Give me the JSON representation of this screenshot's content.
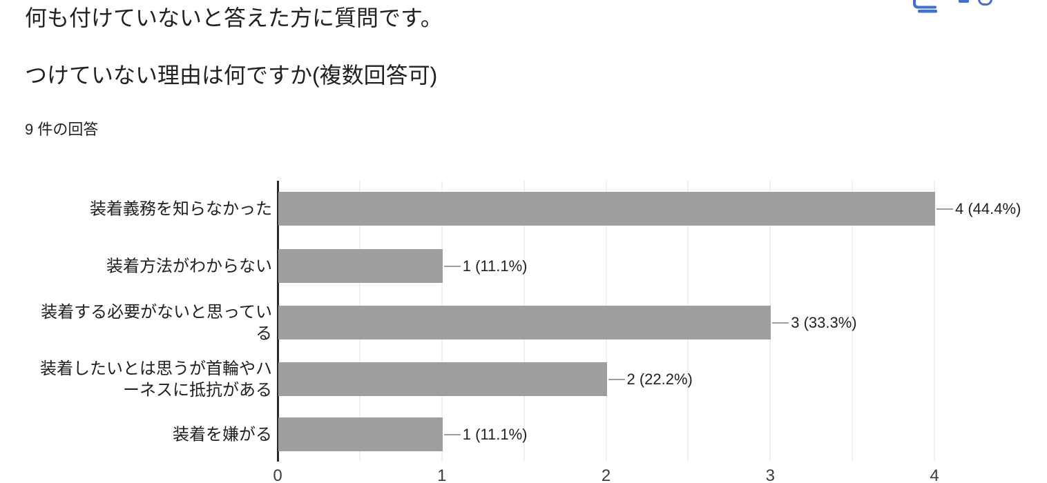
{
  "header": {
    "title_line1": "何も付けていないと答えた方に質問です。",
    "title_line2": "つけていない理由は何ですか(複数回答可)",
    "responses_count": "9 件の回答"
  },
  "toolbar": {
    "copy_icon": "content-copy",
    "accent_blue": "#3e6fd6"
  },
  "chart_data": {
    "type": "bar",
    "orientation": "horizontal",
    "title": "つけていない理由は何ですか(複数回答可)",
    "categories": [
      "装着義務を知らなかった",
      "装着方法がわからない",
      "装着する必要がないと思っている",
      "装着したいとは思うが首輪やハーネスに抵抗がある",
      "装着を嫌がる"
    ],
    "values": [
      4,
      1,
      3,
      2,
      1
    ],
    "percentages": [
      44.4,
      11.1,
      33.3,
      22.2,
      11.1
    ],
    "value_labels": [
      "4 (44.4%)",
      "1 (11.1%)",
      "3 (33.3%)",
      "2 (22.2%)",
      "1 (11.1%)"
    ],
    "total_responses": 9,
    "xlabel": "",
    "ylabel": "",
    "xticks": [
      0,
      1,
      2,
      3,
      4
    ],
    "xlim": [
      0,
      4
    ],
    "grid_interval": 0.5,
    "grid_on": true,
    "legend": "none",
    "bar_color": "#9e9e9e",
    "axis_color": "#2a2a2a",
    "gridline_color": "#f0f0f0",
    "connector_color": "#9e9e9e",
    "text_color": "#212121"
  }
}
